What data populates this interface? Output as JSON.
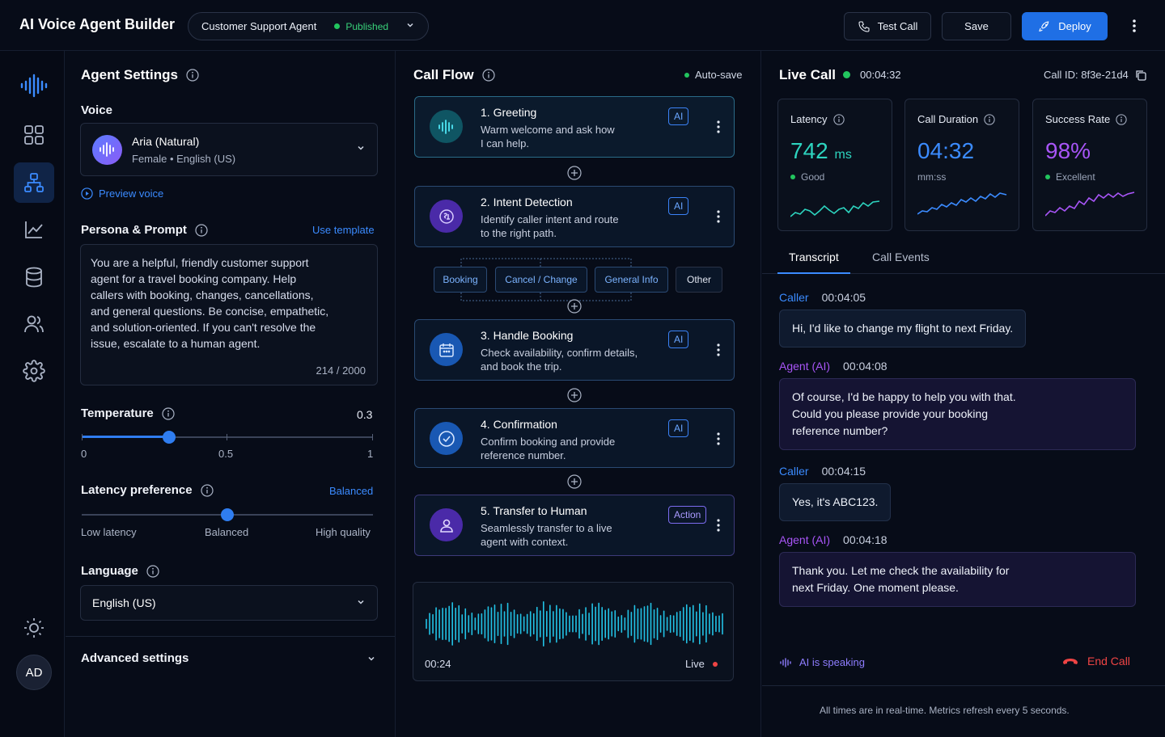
{
  "app": {
    "title": "AI Voice Agent Builder"
  },
  "header": {
    "agent_name": "Customer Support Agent",
    "status": "Published",
    "test_call": "Test Call",
    "save": "Save",
    "deploy": "Deploy"
  },
  "rail": {
    "items": [
      "logo-icon",
      "dashboard-icon",
      "flow-icon",
      "analytics-icon",
      "database-icon",
      "users-icon",
      "settings-icon"
    ],
    "avatar": "AD"
  },
  "settings": {
    "title": "Agent Settings",
    "voice_label": "Voice",
    "voice_name": "Aria (Natural)",
    "voice_meta": "Female • English (US)",
    "preview": "Preview voice",
    "persona_label": "Persona & Prompt",
    "use_template": "Use template",
    "prompt": "You are a helpful, friendly customer support\nagent for a travel booking company. Help\ncallers with booking, changes, cancellations,\nand general questions. Be concise, empathetic,\nand solution-oriented. If you can't resolve the\nissue, escalate to a human agent.",
    "prompt_count": "214 / 2000",
    "temperature_label": "Temperature",
    "temperature_value": "0.3",
    "temperature_min": "0",
    "temperature_mid": "0.5",
    "temperature_max": "1",
    "latency_label": "Latency preference",
    "latency_value": "Balanced",
    "latency_low": "Low latency",
    "latency_mid": "Balanced",
    "latency_high": "High quality",
    "language_label": "Language",
    "language_value": "English (US)",
    "advanced": "Advanced settings"
  },
  "flow": {
    "title": "Call Flow",
    "autosave": "Auto-save",
    "nodes": [
      {
        "title": "1. Greeting",
        "desc": "Warm welcome and ask how\nI can help.",
        "tag": "AI"
      },
      {
        "title": "2. Intent Detection",
        "desc": "Identify caller intent and route\nto the right path.",
        "tag": "AI"
      },
      {
        "title": "3. Handle Booking",
        "desc": "Check availability, confirm details,\nand book the trip.",
        "tag": "AI"
      },
      {
        "title": "4. Confirmation",
        "desc": "Confirm booking and provide\nreference number.",
        "tag": "AI"
      },
      {
        "title": "5. Transfer to Human",
        "desc": "Seamlessly transfer to a live\nagent with context.",
        "tag": "Action"
      }
    ],
    "branches": [
      "Booking",
      "Cancel / Change",
      "General Info",
      "Other"
    ],
    "wave_time": "00:24",
    "wave_status": "Live"
  },
  "live": {
    "title": "Live Call",
    "timer": "00:04:32",
    "call_id": "Call ID: 8f3e-21d4",
    "metrics": [
      {
        "label": "Latency",
        "value": "742",
        "unit": "ms",
        "sub": "Good",
        "color": "#22c55e"
      },
      {
        "label": "Call Duration",
        "value": "04:32",
        "unit": "",
        "sub": "mm:ss",
        "color": "#3b8bff"
      },
      {
        "label": "Success Rate",
        "value": "98%",
        "unit": "",
        "sub": "Excellent",
        "color": "#a855f7"
      }
    ],
    "tabs": [
      "Transcript",
      "Call Events"
    ],
    "transcript": [
      {
        "speaker": "Caller",
        "time": "00:04:05",
        "text": "Hi, I'd like to change my flight to next Friday."
      },
      {
        "speaker": "Agent (AI)",
        "time": "00:04:08",
        "text": "Of course, I'd be happy to help you with that.\nCould you please provide your booking\nreference number?"
      },
      {
        "speaker": "Caller",
        "time": "00:04:15",
        "text": "Yes, it's ABC123."
      },
      {
        "speaker": "Agent (AI)",
        "time": "00:04:18",
        "text": "Thank you. Let me check the availability for\nnext Friday. One moment please."
      }
    ],
    "speaking": "AI is speaking",
    "end_call": "End Call",
    "footer": "All times are in real-time. Metrics refresh every 5 seconds."
  },
  "sliders": {
    "temperature": 0.3,
    "latency": 0.5
  }
}
